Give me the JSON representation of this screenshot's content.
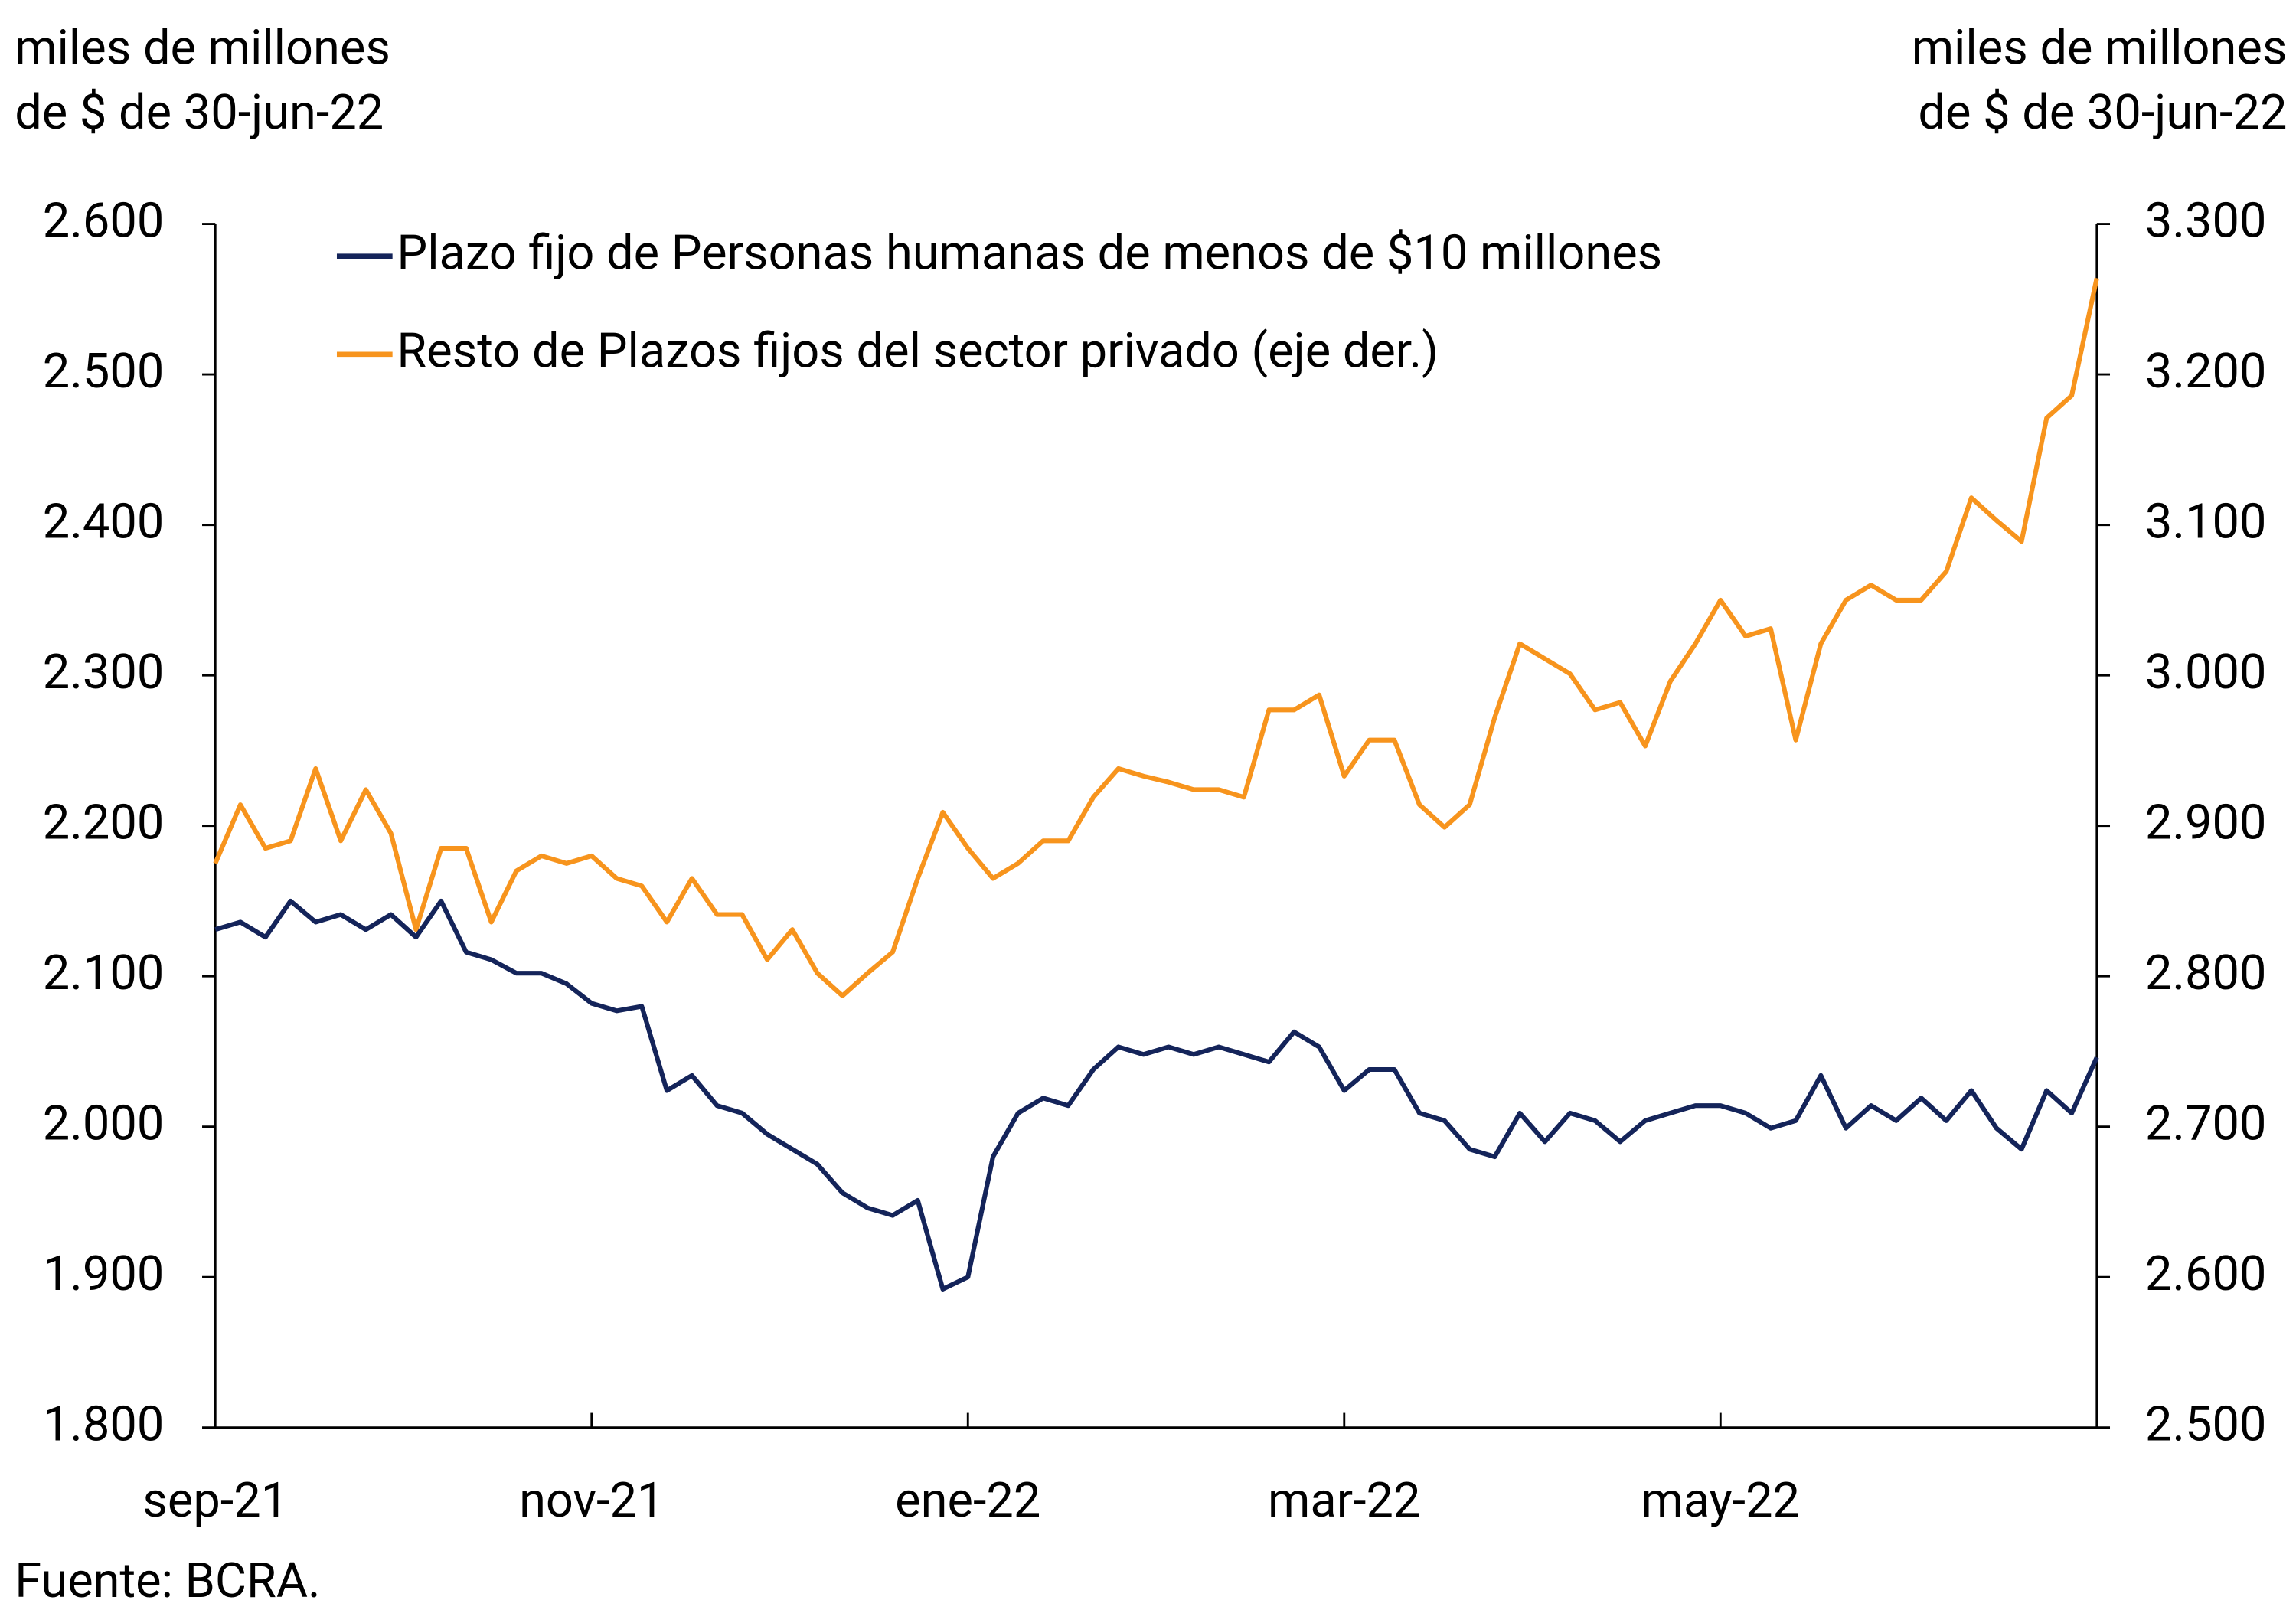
{
  "chart_data": {
    "type": "line",
    "ylabel_lines": [
      "miles de millones",
      "de $ de 30-jun-22"
    ],
    "y2label_lines": [
      "miles de millones",
      "de $ de 30-jun-22"
    ],
    "source": "Fuente: BCRA.",
    "categories": [
      "sep-21",
      null,
      null,
      null,
      null,
      null,
      null,
      null,
      null,
      null,
      null,
      null,
      null,
      null,
      null,
      "nov-21",
      null,
      null,
      null,
      null,
      null,
      null,
      null,
      null,
      null,
      null,
      null,
      null,
      null,
      null,
      "ene-22",
      null,
      null,
      null,
      null,
      null,
      null,
      null,
      null,
      null,
      null,
      null,
      null,
      null,
      null,
      "mar-22",
      null,
      null,
      null,
      null,
      null,
      null,
      null,
      null,
      null,
      null,
      null,
      null,
      null,
      null,
      "may-22",
      null,
      null,
      null,
      null,
      null,
      null,
      null,
      null,
      null,
      null,
      null,
      null,
      null,
      null,
      null
    ],
    "ylim": [
      1800,
      2600
    ],
    "yticks": [
      {
        "value": 1800,
        "label": "1.800"
      },
      {
        "value": 1900,
        "label": "1.900"
      },
      {
        "value": 2000,
        "label": "2.000"
      },
      {
        "value": 2100,
        "label": "2.100"
      },
      {
        "value": 2200,
        "label": "2.200"
      },
      {
        "value": 2300,
        "label": "2.300"
      },
      {
        "value": 2400,
        "label": "2.400"
      },
      {
        "value": 2500,
        "label": "2.500"
      },
      {
        "value": 2600,
        "label": "2.600"
      }
    ],
    "y2lim": [
      2500,
      3300
    ],
    "y2ticks": [
      {
        "value": 2500,
        "label": "2.500"
      },
      {
        "value": 2600,
        "label": "2.600"
      },
      {
        "value": 2700,
        "label": "2.700"
      },
      {
        "value": 2800,
        "label": "2.800"
      },
      {
        "value": 2900,
        "label": "2.900"
      },
      {
        "value": 3000,
        "label": "3.000"
      },
      {
        "value": 3100,
        "label": "3.100"
      },
      {
        "value": 3200,
        "label": "3.200"
      },
      {
        "value": 3300,
        "label": "3.300"
      }
    ],
    "grid": false,
    "legend": "top-left",
    "series": [
      {
        "name": "Plazo fijo de Personas humanas de menos de $10 millones",
        "color": "#14245a",
        "axis": "y",
        "values": [
          2131,
          2136,
          2126,
          2150,
          2136,
          2141,
          2131,
          2141,
          2126,
          2150,
          2116,
          2111,
          2102,
          2102,
          2095,
          2082,
          2077,
          2080,
          2024,
          2034,
          2014,
          2009,
          1995,
          1985,
          1975,
          1956,
          1946,
          1941,
          1951,
          1892,
          1900,
          1980,
          2009,
          2019,
          2014,
          2038,
          2053,
          2048,
          2053,
          2048,
          2053,
          2048,
          2043,
          2063,
          2053,
          2024,
          2038,
          2038,
          2009,
          2004,
          1985,
          1980,
          2009,
          1990,
          2009,
          2004,
          1990,
          2004,
          2009,
          2014,
          2014,
          2009,
          1999,
          2004,
          2034,
          1999,
          2014,
          2004,
          2019,
          2004,
          2024,
          1999,
          1985,
          2024,
          2009,
          2046
        ]
      },
      {
        "name": "Resto de Plazos fijos del sector privado (eje der.)",
        "color": "#f7941d",
        "axis": "y2",
        "values": [
          2875,
          2914,
          2885,
          2890,
          2938,
          2890,
          2924,
          2895,
          2831,
          2885,
          2885,
          2836,
          2870,
          2880,
          2875,
          2880,
          2865,
          2860,
          2836,
          2865,
          2841,
          2841,
          2811,
          2831,
          2802,
          2787,
          2802,
          2816,
          2865,
          2909,
          2885,
          2865,
          2875,
          2890,
          2890,
          2919,
          2938,
          2933,
          2929,
          2924,
          2924,
          2919,
          2977,
          2977,
          2987,
          2933,
          2957,
          2957,
          2914,
          2899,
          2914,
          2972,
          3021,
          3011,
          3001,
          2977,
          2982,
          2953,
          2996,
          3021,
          3050,
          3026,
          3031,
          2957,
          3021,
          3050,
          3060,
          3050,
          3050,
          3069,
          3118,
          3103,
          3089,
          3171,
          3186,
          3264
        ]
      }
    ]
  }
}
